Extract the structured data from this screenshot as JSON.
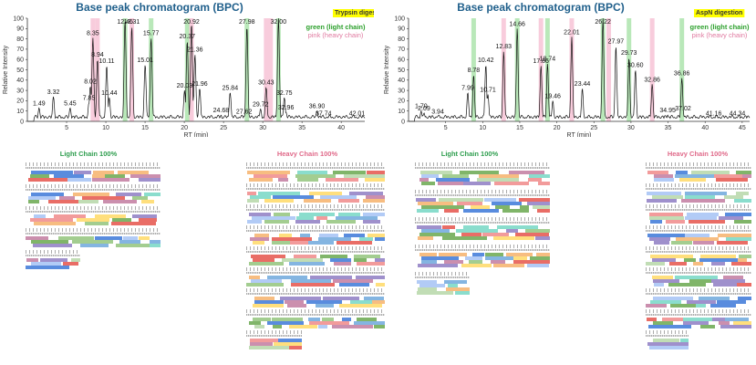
{
  "chart_data": [
    {
      "type": "line",
      "title": "Base peak chromatogram (BPC)",
      "digestion_label": "Trypsin digestion",
      "legend": [
        {
          "name": "green (light chain)",
          "color": "#2ca02c"
        },
        {
          "name": "pink (heavy chain)",
          "color": "#e07aa0"
        }
      ],
      "xlabel": "RT (min)",
      "ylabel": "Relative Intensity",
      "xlim": [
        0,
        43
      ],
      "ylim": [
        0,
        100
      ],
      "xticks": [
        5,
        10,
        15,
        20,
        25,
        30,
        35,
        40
      ],
      "yticks": [
        0,
        10,
        20,
        30,
        40,
        50,
        60,
        70,
        80,
        90,
        100
      ],
      "peaks": [
        {
          "rt": 1.49,
          "intensity": 13
        },
        {
          "rt": 3.32,
          "intensity": 24
        },
        {
          "rt": 5.45,
          "intensity": 13
        },
        {
          "rt": 7.85,
          "intensity": 18
        },
        {
          "rt": 8.02,
          "intensity": 34
        },
        {
          "rt": 8.35,
          "intensity": 81
        },
        {
          "rt": 8.94,
          "intensity": 60
        },
        {
          "rt": 10.11,
          "intensity": 54
        },
        {
          "rt": 10.44,
          "intensity": 23
        },
        {
          "rt": 12.45,
          "intensity": 98
        },
        {
          "rt": 13.31,
          "intensity": 92
        },
        {
          "rt": 15.01,
          "intensity": 55
        },
        {
          "rt": 15.77,
          "intensity": 81
        },
        {
          "rt": 20.03,
          "intensity": 30
        },
        {
          "rt": 20.37,
          "intensity": 78
        },
        {
          "rt": 20.92,
          "intensity": 95
        },
        {
          "rt": 21.36,
          "intensity": 65
        },
        {
          "rt": 21.96,
          "intensity": 32
        },
        {
          "rt": 24.68,
          "intensity": 6
        },
        {
          "rt": 25.84,
          "intensity": 28
        },
        {
          "rt": 27.62,
          "intensity": 5
        },
        {
          "rt": 27.98,
          "intensity": 92
        },
        {
          "rt": 29.72,
          "intensity": 12
        },
        {
          "rt": 30.43,
          "intensity": 33
        },
        {
          "rt": 32.0,
          "intensity": 100
        },
        {
          "rt": 32.75,
          "intensity": 23
        },
        {
          "rt": 32.96,
          "intensity": 9
        },
        {
          "rt": 36.9,
          "intensity": 10
        },
        {
          "rt": 37.74,
          "intensity": 3
        },
        {
          "rt": 42.01,
          "intensity": 3
        }
      ],
      "highlight_bands": [
        {
          "rt": 12.45,
          "color": "green"
        },
        {
          "rt": 15.77,
          "color": "green"
        },
        {
          "rt": 20.37,
          "color": "green"
        },
        {
          "rt": 27.98,
          "color": "green"
        },
        {
          "rt": 32.0,
          "color": "green"
        },
        {
          "rt": 8.35,
          "color": "pink"
        },
        {
          "rt": 8.94,
          "color": "pink"
        },
        {
          "rt": 13.31,
          "color": "pink"
        },
        {
          "rt": 20.92,
          "color": "pink"
        },
        {
          "rt": 30.43,
          "color": "pink"
        },
        {
          "rt": 31.0,
          "color": "pink"
        }
      ]
    },
    {
      "type": "line",
      "title": "Base peak chromatogram (BPC)",
      "digestion_label": "AspN digestion",
      "legend": [
        {
          "name": "green (light chain)",
          "color": "#2ca02c"
        },
        {
          "name": "pink (heavy chain)",
          "color": "#e07aa0"
        }
      ],
      "xlabel": "RT (min)",
      "ylabel": "Relative Intensity",
      "xlim": [
        0,
        46
      ],
      "ylim": [
        0,
        100
      ],
      "xticks": [
        5,
        10,
        15,
        20,
        25,
        30,
        35,
        40,
        45
      ],
      "yticks": [
        0,
        10,
        20,
        30,
        40,
        50,
        60,
        70,
        80,
        90,
        100
      ],
      "peaks": [
        {
          "rt": 1.7,
          "intensity": 10
        },
        {
          "rt": 2.09,
          "intensity": 8
        },
        {
          "rt": 3.94,
          "intensity": 5
        },
        {
          "rt": 7.99,
          "intensity": 28
        },
        {
          "rt": 8.78,
          "intensity": 45
        },
        {
          "rt": 10.42,
          "intensity": 55
        },
        {
          "rt": 10.71,
          "intensity": 26
        },
        {
          "rt": 12.83,
          "intensity": 68
        },
        {
          "rt": 14.66,
          "intensity": 90
        },
        {
          "rt": 17.86,
          "intensity": 54
        },
        {
          "rt": 18.74,
          "intensity": 56
        },
        {
          "rt": 19.46,
          "intensity": 20
        },
        {
          "rt": 22.01,
          "intensity": 82
        },
        {
          "rt": 23.44,
          "intensity": 32
        },
        {
          "rt": 26.22,
          "intensity": 100
        },
        {
          "rt": 27.97,
          "intensity": 73
        },
        {
          "rt": 29.73,
          "intensity": 62
        },
        {
          "rt": 30.6,
          "intensity": 50
        },
        {
          "rt": 32.86,
          "intensity": 36
        },
        {
          "rt": 34.95,
          "intensity": 6
        },
        {
          "rt": 36.86,
          "intensity": 42
        },
        {
          "rt": 37.02,
          "intensity": 8
        },
        {
          "rt": 41.16,
          "intensity": 3
        },
        {
          "rt": 44.34,
          "intensity": 3
        }
      ],
      "highlight_bands": [
        {
          "rt": 8.78,
          "color": "green"
        },
        {
          "rt": 14.66,
          "color": "green"
        },
        {
          "rt": 18.74,
          "color": "green"
        },
        {
          "rt": 26.22,
          "color": "green"
        },
        {
          "rt": 29.73,
          "color": "green"
        },
        {
          "rt": 36.86,
          "color": "green"
        },
        {
          "rt": 12.83,
          "color": "pink"
        },
        {
          "rt": 17.86,
          "color": "pink"
        },
        {
          "rt": 22.01,
          "color": "pink"
        },
        {
          "rt": 27.0,
          "color": "pink"
        },
        {
          "rt": 32.86,
          "color": "pink"
        }
      ]
    }
  ],
  "coverage_maps": [
    {
      "label": "Light Chain 100%",
      "chain": "light",
      "rows": 5
    },
    {
      "label": "Heavy Chain 100%",
      "chain": "heavy",
      "rows": 9
    },
    {
      "label": "Light Chain 100%",
      "chain": "light",
      "rows": 5
    },
    {
      "label": "Heavy Chain 100%",
      "chain": "heavy",
      "rows": 9
    }
  ],
  "colors": {
    "title": "#1f5f8b",
    "green": "#2ca02c",
    "pink": "#e07aa0",
    "highlight": "#ffff00"
  }
}
